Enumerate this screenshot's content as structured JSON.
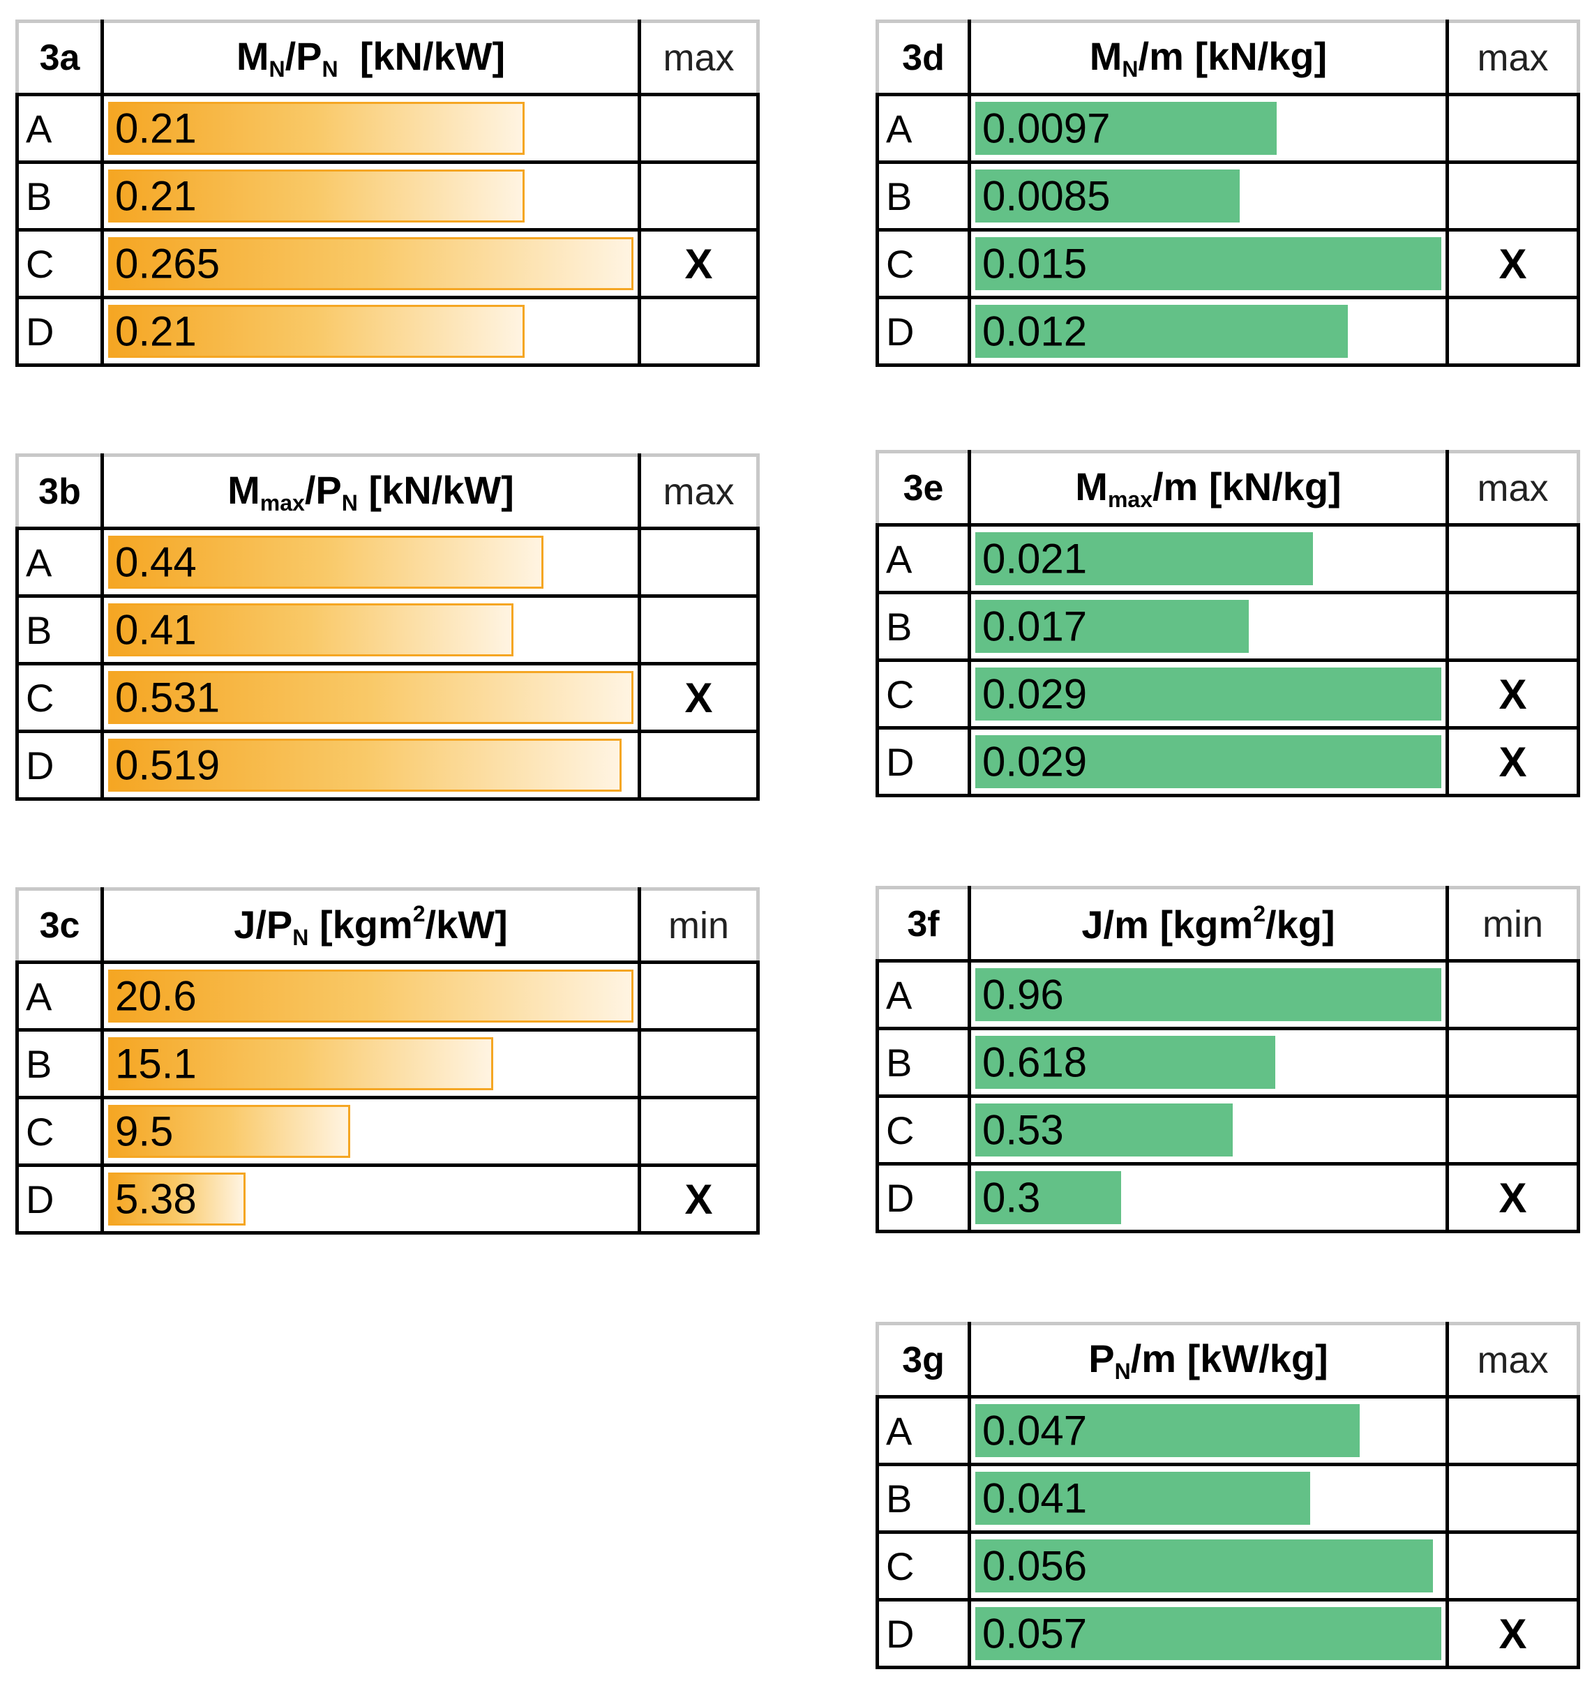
{
  "chart_data": [
    {
      "type": "bar",
      "id": "3a",
      "title_parts": [
        [
          "text",
          "M"
        ],
        [
          "sub",
          "N"
        ],
        [
          "text",
          "/P"
        ],
        [
          "sub",
          "N"
        ],
        [
          "text",
          "  [kN/kW]"
        ]
      ],
      "criterion": "max",
      "categories": [
        "A",
        "B",
        "C",
        "D"
      ],
      "values": [
        0.21,
        0.21,
        0.265,
        0.21
      ],
      "labels": [
        "0.21",
        "0.21",
        "0.265",
        "0.21"
      ],
      "marks": [
        "",
        "",
        "X",
        ""
      ],
      "color": "#f5a623",
      "style": "gradient"
    },
    {
      "type": "bar",
      "id": "3b",
      "title_parts": [
        [
          "text",
          "M"
        ],
        [
          "sub",
          "max"
        ],
        [
          "text",
          "/P"
        ],
        [
          "sub",
          "N"
        ],
        [
          "text",
          " [kN/kW]"
        ]
      ],
      "criterion": "max",
      "categories": [
        "A",
        "B",
        "C",
        "D"
      ],
      "values": [
        0.44,
        0.41,
        0.531,
        0.519
      ],
      "labels": [
        "0.44",
        "0.41",
        "0.531",
        "0.519"
      ],
      "marks": [
        "",
        "",
        "X",
        ""
      ],
      "color": "#f5a623",
      "style": "gradient"
    },
    {
      "type": "bar",
      "id": "3c",
      "title_parts": [
        [
          "text",
          "J/P"
        ],
        [
          "sub",
          "N"
        ],
        [
          "text",
          " [kgm"
        ],
        [
          "sup",
          "2"
        ],
        [
          "text",
          "/kW]"
        ]
      ],
      "criterion": "min",
      "categories": [
        "A",
        "B",
        "C",
        "D"
      ],
      "values": [
        20.6,
        15.1,
        9.5,
        5.38
      ],
      "labels": [
        "20.6",
        "15.1",
        "9.5",
        "5.38"
      ],
      "marks": [
        "",
        "",
        "",
        "X"
      ],
      "color": "#f5a623",
      "style": "gradient"
    },
    {
      "type": "bar",
      "id": "3d",
      "title_parts": [
        [
          "text",
          "M"
        ],
        [
          "sub",
          "N"
        ],
        [
          "text",
          "/m [kN/kg]"
        ]
      ],
      "criterion": "max",
      "categories": [
        "A",
        "B",
        "C",
        "D"
      ],
      "values": [
        0.0097,
        0.0085,
        0.015,
        0.012
      ],
      "labels": [
        "0.0097",
        "0.0085",
        "0.015",
        "0.012"
      ],
      "marks": [
        "",
        "",
        "X",
        ""
      ],
      "color": "#63c187",
      "style": "solid"
    },
    {
      "type": "bar",
      "id": "3e",
      "title_parts": [
        [
          "text",
          "M"
        ],
        [
          "sub",
          "max"
        ],
        [
          "text",
          "/m [kN/kg]"
        ]
      ],
      "criterion": "max",
      "categories": [
        "A",
        "B",
        "C",
        "D"
      ],
      "values": [
        0.021,
        0.017,
        0.029,
        0.029
      ],
      "labels": [
        "0.021",
        "0.017",
        "0.029",
        "0.029"
      ],
      "marks": [
        "",
        "",
        "X",
        "X"
      ],
      "color": "#63c187",
      "style": "solid"
    },
    {
      "type": "bar",
      "id": "3f",
      "title_parts": [
        [
          "text",
          "J/m [kgm"
        ],
        [
          "sup",
          "2"
        ],
        [
          "text",
          "/kg]"
        ]
      ],
      "criterion": "min",
      "categories": [
        "A",
        "B",
        "C",
        "D"
      ],
      "values": [
        0.96,
        0.618,
        0.53,
        0.3
      ],
      "labels": [
        "0.96",
        "0.618",
        "0.53",
        "0.3"
      ],
      "marks": [
        "",
        "",
        "",
        "X"
      ],
      "color": "#63c187",
      "style": "solid"
    },
    {
      "type": "bar",
      "id": "3g",
      "title_parts": [
        [
          "text",
          "P"
        ],
        [
          "sub",
          "N"
        ],
        [
          "text",
          "/m [kW/kg]"
        ]
      ],
      "criterion": "max",
      "categories": [
        "A",
        "B",
        "C",
        "D"
      ],
      "values": [
        0.047,
        0.041,
        0.056,
        0.057
      ],
      "labels": [
        "0.047",
        "0.041",
        "0.056",
        "0.057"
      ],
      "marks": [
        "",
        "",
        "",
        "X"
      ],
      "color": "#63c187",
      "style": "solid"
    }
  ]
}
